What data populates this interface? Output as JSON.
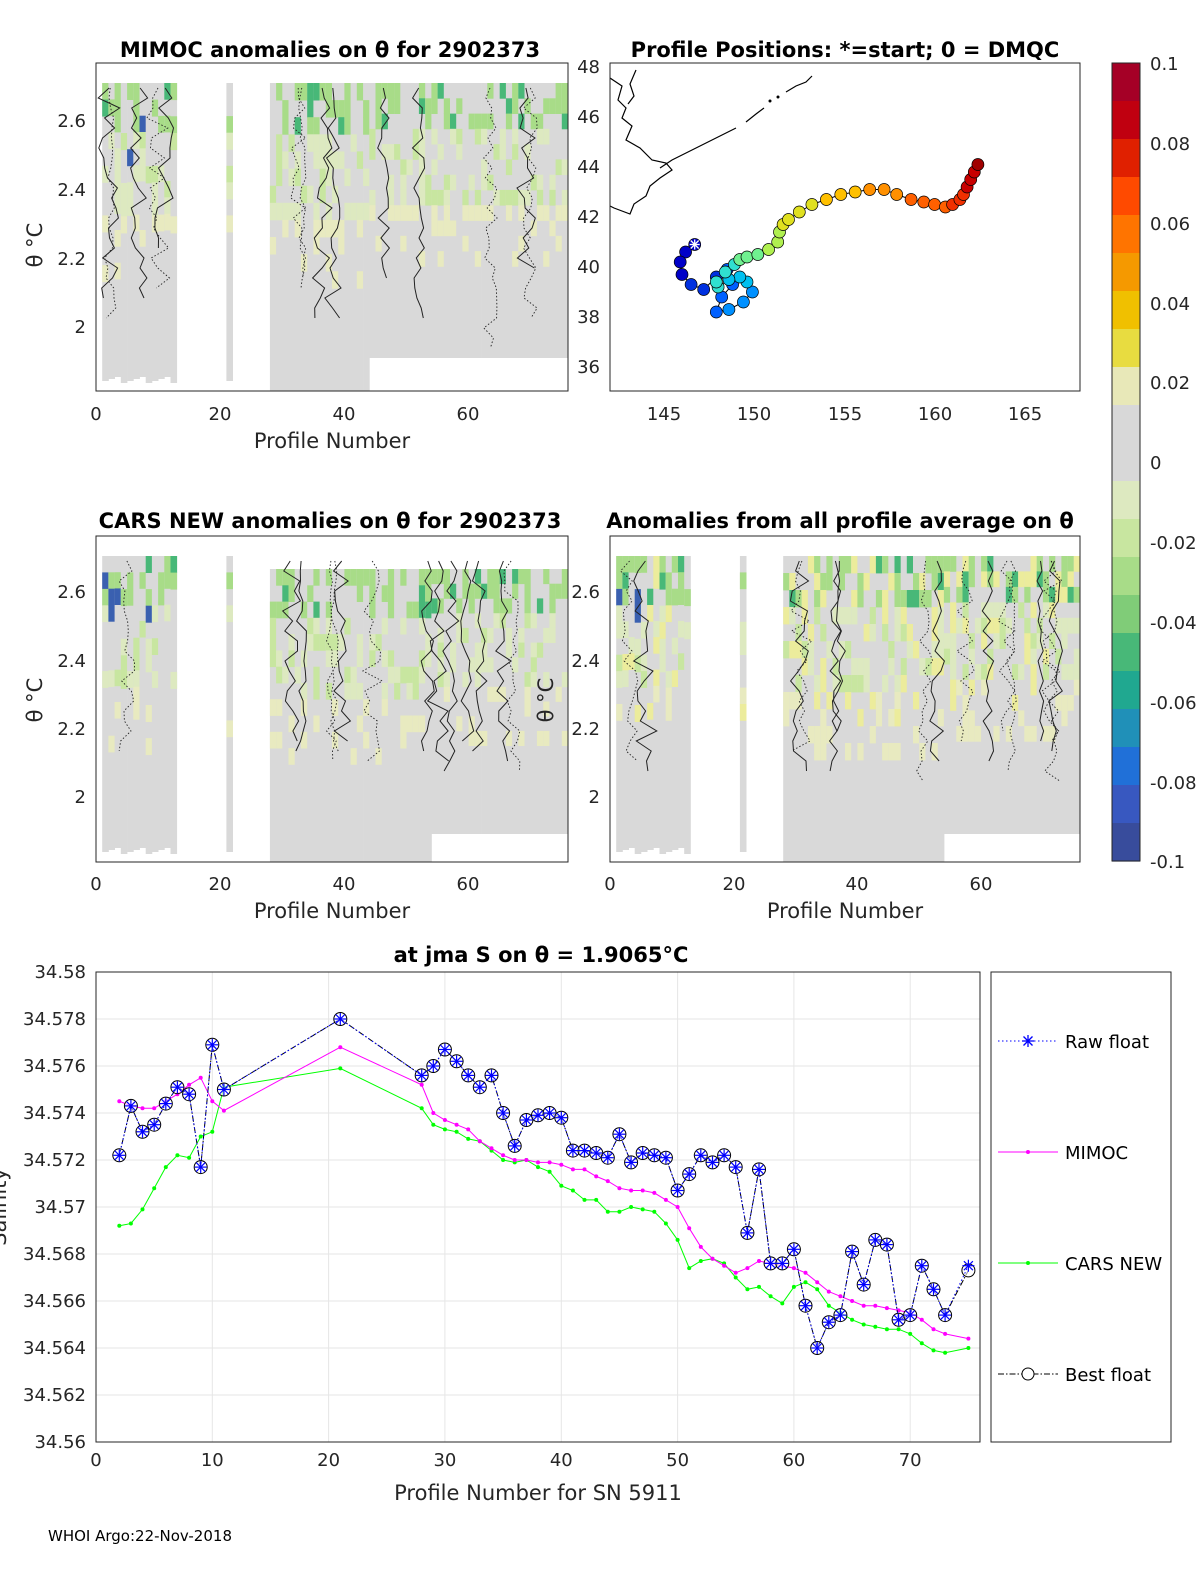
{
  "footer": "WHOI Argo:22-Nov-2018",
  "colorbar": {
    "ticks": [
      "0.1",
      "0.08",
      "0.06",
      "0.04",
      "0.02",
      "0",
      "-0.02",
      "-0.04",
      "-0.06",
      "-0.08",
      "-0.1"
    ],
    "colors": [
      "#a50026",
      "#c00010",
      "#e02000",
      "#ff4a00",
      "#ff7400",
      "#f59900",
      "#f0c000",
      "#e8dc40",
      "#e8e8b8",
      "#d8d8d8",
      "#d8d8d8",
      "#dde9c0",
      "#c8e6a0",
      "#a8dc88",
      "#80cc78",
      "#48b878",
      "#20a890",
      "#2090b8",
      "#2070d8",
      "#3858c0",
      "#384c9c"
    ]
  },
  "panel1": {
    "title": "MIMOC anomalies on θ  for 2902373",
    "ylabel": "θ °C",
    "xlabel": "Profile Number",
    "yticks": [
      "2.6",
      "2.4",
      "2.2",
      "2"
    ],
    "xticks": [
      "0",
      "20",
      "40",
      "60"
    ]
  },
  "panel2": {
    "title": "Profile Positions: *=start; 0 = DMQC",
    "yticks": [
      "48",
      "46",
      "44",
      "42",
      "40",
      "38",
      "36"
    ],
    "xticks": [
      "145",
      "150",
      "155",
      "160",
      "165"
    ]
  },
  "panel3": {
    "title": "CARS NEW anomalies on θ for 2902373",
    "ylabel": "θ °C",
    "xlabel": "Profile Number",
    "yticks": [
      "2.6",
      "2.4",
      "2.2",
      "2"
    ],
    "xticks": [
      "0",
      "20",
      "40",
      "60"
    ]
  },
  "panel4": {
    "title": "Anomalies from all profile average on θ",
    "ylabel": "θ °C",
    "xlabel": "Profile Number",
    "yticks": [
      "2.6",
      "2.4",
      "2.2",
      "2"
    ],
    "xticks": [
      "0",
      "20",
      "40",
      "60"
    ]
  },
  "chart_data": {
    "type": "line",
    "title": "at jma S on θ = 1.9065°C",
    "xlabel": "Profile Number for SN 5911",
    "ylabel": "Salinity",
    "xlim": [
      0,
      76
    ],
    "ylim": [
      34.56,
      34.58
    ],
    "xticks": [
      0,
      10,
      20,
      30,
      40,
      50,
      60,
      70
    ],
    "yticks": [
      34.56,
      34.562,
      34.564,
      34.566,
      34.568,
      34.57,
      34.572,
      34.574,
      34.576,
      34.578,
      34.58
    ],
    "ytick_labels": [
      "34.56",
      "34.562",
      "34.564",
      "34.566",
      "34.568",
      "34.57",
      "34.572",
      "34.574",
      "34.576",
      "34.578",
      "34.58"
    ],
    "legend": [
      "Raw float",
      "MIMOC",
      "CARS NEW",
      "Best float"
    ],
    "x": [
      2,
      3,
      4,
      5,
      6,
      7,
      8,
      9,
      10,
      11,
      21,
      28,
      29,
      30,
      31,
      32,
      33,
      34,
      35,
      36,
      37,
      38,
      39,
      40,
      41,
      42,
      43,
      44,
      45,
      46,
      47,
      48,
      49,
      50,
      51,
      52,
      53,
      54,
      55,
      56,
      57,
      58,
      59,
      60,
      61,
      62,
      63,
      64,
      65,
      66,
      67,
      68,
      69,
      70,
      71,
      72,
      73,
      75
    ],
    "series": [
      {
        "name": "Raw float",
        "color": "#0000ff",
        "values": [
          34.5722,
          34.5743,
          34.5732,
          34.5735,
          34.5744,
          34.5751,
          34.5748,
          34.5717,
          34.5769,
          34.575,
          34.578,
          34.5756,
          34.576,
          34.5767,
          34.5762,
          34.5756,
          34.5751,
          34.5756,
          34.574,
          34.5726,
          34.5737,
          34.5739,
          34.574,
          34.5738,
          34.5724,
          34.5724,
          34.5723,
          34.5721,
          34.5731,
          34.5719,
          34.5723,
          34.5722,
          34.5721,
          34.5707,
          34.5714,
          34.5722,
          34.5719,
          34.5722,
          34.5717,
          34.5689,
          34.5716,
          34.5676,
          34.5676,
          34.5682,
          34.5658,
          34.564,
          34.5651,
          34.5654,
          34.5681,
          34.5667,
          34.5686,
          34.5684,
          34.5652,
          34.5654,
          34.5675,
          34.5665,
          34.5654,
          34.5675
        ]
      },
      {
        "name": "MIMOC",
        "color": "#ff00ff",
        "values": [
          34.5745,
          34.5743,
          34.5742,
          34.5742,
          34.5745,
          34.5748,
          34.5752,
          34.5755,
          34.5745,
          34.5741,
          34.5768,
          34.5752,
          34.574,
          34.5737,
          34.5735,
          34.5733,
          34.5728,
          34.5725,
          34.5722,
          34.572,
          34.572,
          34.5719,
          34.5719,
          34.5718,
          34.5716,
          34.5716,
          34.5713,
          34.5711,
          34.5708,
          34.5707,
          34.5707,
          34.5706,
          34.5703,
          34.57,
          34.5691,
          34.5683,
          34.5678,
          34.5675,
          34.5672,
          34.5674,
          34.5677,
          34.5676,
          34.5675,
          34.5674,
          34.5672,
          34.5668,
          34.5664,
          34.5662,
          34.566,
          34.5658,
          34.5658,
          34.5657,
          34.5656,
          34.5655,
          34.5652,
          34.5648,
          34.5646,
          34.5644
        ]
      },
      {
        "name": "CARS NEW",
        "color": "#00ff00",
        "values": [
          34.5692,
          34.5693,
          34.5699,
          34.5708,
          34.5717,
          34.5722,
          34.5721,
          34.573,
          34.5732,
          34.5751,
          34.5759,
          34.5742,
          34.5735,
          34.5733,
          34.5732,
          34.5729,
          34.5728,
          34.5724,
          34.572,
          34.5719,
          34.572,
          34.5717,
          34.5715,
          34.5709,
          34.5707,
          34.5703,
          34.5703,
          34.5698,
          34.5698,
          34.57,
          34.5699,
          34.5698,
          34.5693,
          34.5686,
          34.5674,
          34.5677,
          34.5678,
          34.5676,
          34.567,
          34.5665,
          34.5666,
          34.5662,
          34.5659,
          34.5666,
          34.5668,
          34.5665,
          34.5658,
          34.5655,
          34.5652,
          34.565,
          34.5649,
          34.5648,
          34.5648,
          34.5646,
          34.5642,
          34.5639,
          34.5638,
          34.564
        ]
      },
      {
        "name": "Best float",
        "color": "#000000",
        "values": [
          34.5722,
          34.5743,
          34.5732,
          34.5735,
          34.5744,
          34.5751,
          34.5748,
          34.5717,
          34.5769,
          34.575,
          34.578,
          34.5756,
          34.576,
          34.5767,
          34.5762,
          34.5756,
          34.5751,
          34.5756,
          34.574,
          34.5726,
          34.5737,
          34.5739,
          34.574,
          34.5738,
          34.5724,
          34.5724,
          34.5723,
          34.5721,
          34.5731,
          34.5719,
          34.5723,
          34.5722,
          34.5721,
          34.5707,
          34.5714,
          34.5722,
          34.5719,
          34.5722,
          34.5717,
          34.5689,
          34.5716,
          34.5676,
          34.5676,
          34.5682,
          34.5658,
          34.564,
          34.5651,
          34.5654,
          34.5681,
          34.5667,
          34.5686,
          34.5684,
          34.5652,
          34.5654,
          34.5675,
          34.5665,
          34.5654,
          34.5673
        ]
      }
    ]
  },
  "track": {
    "lon": [
      146.7,
      146.2,
      145.9,
      146.0,
      146.5,
      147.2,
      147.9,
      148.5,
      148.8,
      148.2,
      147.9,
      148.6,
      149.4,
      149.9,
      149.6,
      149.2,
      148.6,
      148.0,
      147.9,
      148.4,
      148.9,
      149.2,
      149.6,
      150.2,
      150.8,
      151.3,
      151.4,
      151.6,
      151.9,
      152.5,
      153.2,
      154.0,
      154.8,
      155.6,
      156.4,
      157.2,
      157.9,
      158.7,
      159.4,
      160.0,
      160.6,
      161.0,
      161.4,
      161.6,
      161.8,
      162.0,
      162.2,
      162.4
    ],
    "lat": [
      40.9,
      40.6,
      40.2,
      39.7,
      39.3,
      39.1,
      39.6,
      39.9,
      39.3,
      38.8,
      38.2,
      38.3,
      38.6,
      39.0,
      39.4,
      39.6,
      39.5,
      39.2,
      39.4,
      39.8,
      40.1,
      40.3,
      40.4,
      40.5,
      40.7,
      41.0,
      41.4,
      41.7,
      41.9,
      42.2,
      42.5,
      42.7,
      42.9,
      43.0,
      43.1,
      43.1,
      42.9,
      42.7,
      42.6,
      42.5,
      42.4,
      42.5,
      42.7,
      42.9,
      43.2,
      43.5,
      43.8,
      44.1
    ],
    "start_marker": "*"
  }
}
